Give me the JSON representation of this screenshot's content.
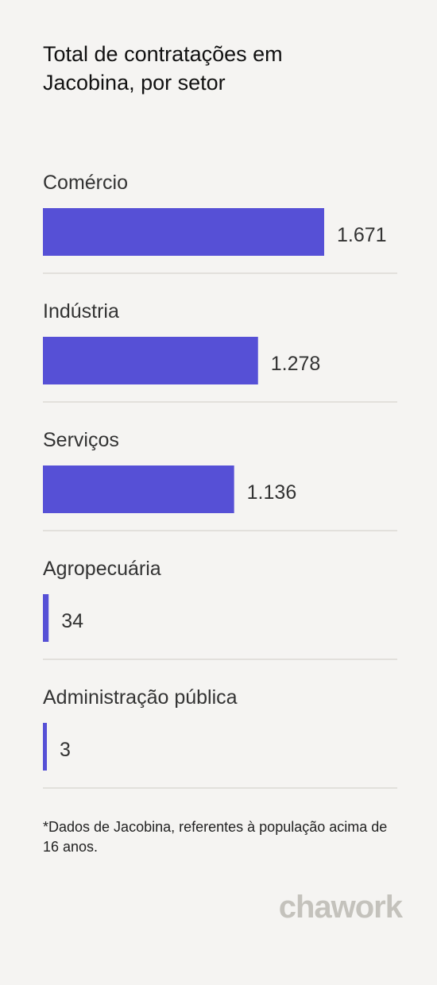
{
  "title": "Total de contratações em Jacobina, por setor",
  "chart_data": {
    "type": "bar",
    "orientation": "horizontal",
    "categories": [
      "Comércio",
      "Indústria",
      "Serviços",
      "Agropecuária",
      "Administração pública"
    ],
    "values": [
      1671,
      1278,
      1136,
      34,
      3
    ],
    "value_labels": [
      "1.671",
      "1.278",
      "1.136",
      "34",
      "3"
    ],
    "bar_color": "#5650d6",
    "divider_color": "#e2e0dc"
  },
  "footnote": "*Dados de Jacobina, referentes à população acima de 16 anos.",
  "logo": "chawork"
}
